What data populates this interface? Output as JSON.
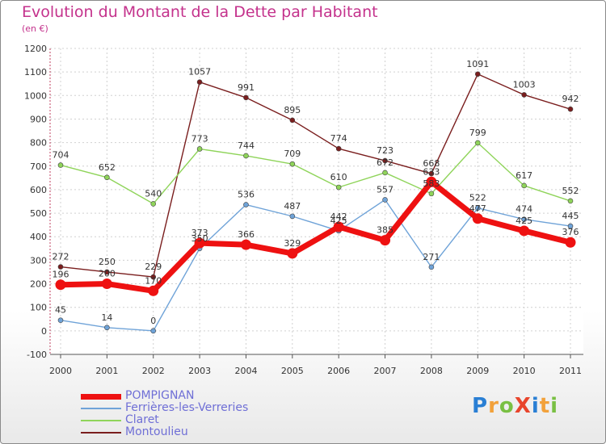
{
  "chart_data": {
    "type": "line",
    "title": "Evolution du Montant de la Dette par Habitant",
    "subtitle": "(en €)",
    "categories": [
      "2000",
      "2001",
      "2002",
      "2003",
      "2004",
      "2005",
      "2006",
      "2007",
      "2008",
      "2009",
      "2010",
      "2011"
    ],
    "ylim": [
      -100,
      1200
    ],
    "yticks": [
      "-100",
      "0",
      "100",
      "200",
      "300",
      "400",
      "500",
      "600",
      "700",
      "800",
      "900",
      "1000",
      "1100",
      "1200"
    ],
    "grid": true,
    "legend_position": "bottom-left",
    "series": [
      {
        "name": "Montoulieu",
        "color": "#7a1e1e",
        "values": [
          272,
          250,
          229,
          1057,
          991,
          895,
          774,
          723,
          668,
          1091,
          1003,
          942
        ]
      },
      {
        "name": "Claret",
        "color": "#8fd45a",
        "values": [
          704,
          652,
          540,
          773,
          744,
          709,
          610,
          672,
          583,
          799,
          617,
          552
        ]
      },
      {
        "name": "Ferrières-les-Verreries",
        "color": "#6fa3d8",
        "values": [
          45,
          14,
          0,
          350,
          536,
          487,
          425,
          557,
          271,
          522,
          474,
          445
        ]
      },
      {
        "name": "POMPIGNAN",
        "color": "#ee1111",
        "values": [
          196,
          200,
          170,
          373,
          366,
          329,
          442,
          385,
          633,
          477,
          425,
          376
        ]
      }
    ],
    "data_labels": [
      [
        "272",
        "250",
        "229",
        "1057",
        "991",
        "895",
        "774",
        "723",
        "668",
        "1091",
        "1003",
        "942"
      ],
      [
        "704",
        "652",
        "540",
        "773",
        "744",
        "709",
        "610",
        "672",
        "583",
        "799",
        "617",
        "552"
      ],
      [
        "45",
        "14",
        "0",
        "350",
        "536",
        "487",
        "425",
        "557",
        "271",
        "522",
        "474",
        "445"
      ],
      [
        "196",
        "200",
        "170",
        "373",
        "366",
        "329",
        "442",
        "385",
        "633",
        "477",
        "425",
        "376"
      ]
    ]
  },
  "legend": {
    "items": [
      {
        "label": "POMPIGNAN",
        "color": "#ee1111",
        "thick": true
      },
      {
        "label": "Ferrières-les-Verreries",
        "color": "#6fa3d8",
        "thick": false
      },
      {
        "label": "Claret",
        "color": "#8fd45a",
        "thick": false
      },
      {
        "label": "Montoulieu",
        "color": "#7a1e1e",
        "thick": false
      }
    ]
  },
  "logo": {
    "text": "ProXiti",
    "letters": [
      "P",
      "r",
      "o",
      "X",
      "i",
      "t",
      "i"
    ],
    "colors": [
      "#2a7fd4",
      "#f2a13a",
      "#79c043",
      "#e8452c",
      "#2a7fd4",
      "#f2a13a",
      "#79c043"
    ]
  }
}
